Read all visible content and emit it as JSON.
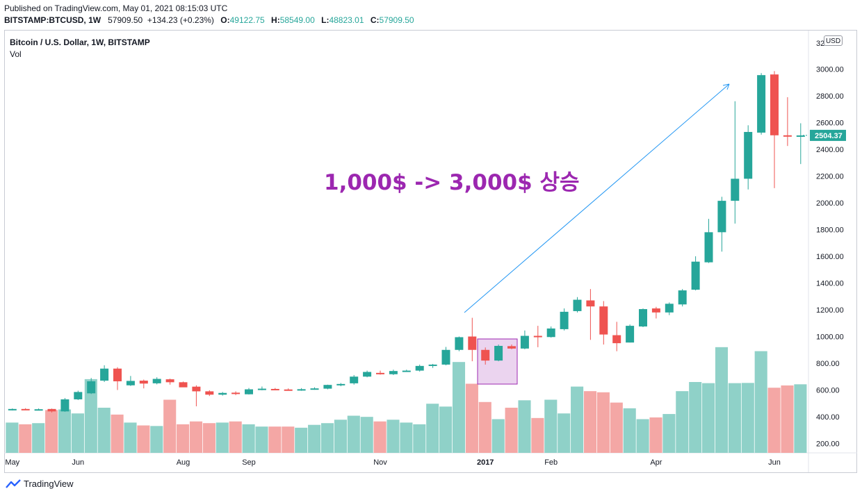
{
  "header": {
    "published": "Published on TradingView.com, May 01, 2021 08:15:03 UTC",
    "symbol": "BITSTAMP:BTCUSD, 1W",
    "price": "57909.50",
    "change": "+134.23 (+0.23%)",
    "o_label": "O:",
    "o_value": "49122.75",
    "h_label": "H:",
    "h_value": "58549.00",
    "l_label": "L:",
    "l_value": "48823.01",
    "c_label": "C:",
    "c_value": "57909.50"
  },
  "legend": {
    "title": "Bitcoin / U.S. Dollar, 1W, BITSTAMP",
    "vol": "Vol"
  },
  "price_axis": {
    "currency": "USD",
    "partial_top": "32"
  },
  "brand": {
    "name": "TradingView"
  },
  "colors": {
    "up": "#26a69a",
    "down": "#ef5350",
    "vol_up": "#8fd1c8",
    "vol_down": "#f4a7a5",
    "annotation": "#9c27b0",
    "arrow": "#2196f3"
  },
  "chart_data": {
    "type": "candlestick",
    "interval": "1W",
    "price_range": [
      100,
      3250
    ],
    "price_ticks": [
      "3000.00",
      "2800.00",
      "2600.00",
      "2400.00",
      "2200.00",
      "2000.00",
      "1800.00",
      "1600.00",
      "1400.00",
      "1200.00",
      "1000.00",
      "800.00",
      "600.00",
      "400.00",
      "200.00"
    ],
    "last_price_label": "2504.37",
    "time_labels": [
      "May",
      "Jun",
      "Aug",
      "Sep",
      "Nov",
      "2017",
      "Feb",
      "Apr",
      "Jun"
    ],
    "annotation_text": "1,000$ -> 3,000$ 상승",
    "candles": [
      {
        "o": 455,
        "h": 462,
        "l": 447,
        "c": 458
      },
      {
        "o": 458,
        "h": 464,
        "l": 451,
        "c": 455
      },
      {
        "o": 455,
        "h": 462,
        "l": 448,
        "c": 456
      },
      {
        "o": 458,
        "h": 461,
        "l": 432,
        "c": 440
      },
      {
        "o": 440,
        "h": 540,
        "l": 437,
        "c": 530
      },
      {
        "o": 530,
        "h": 595,
        "l": 525,
        "c": 585
      },
      {
        "o": 575,
        "h": 690,
        "l": 570,
        "c": 665
      },
      {
        "o": 670,
        "h": 785,
        "l": 660,
        "c": 760
      },
      {
        "o": 760,
        "h": 770,
        "l": 600,
        "c": 665
      },
      {
        "o": 635,
        "h": 705,
        "l": 630,
        "c": 668
      },
      {
        "o": 670,
        "h": 678,
        "l": 612,
        "c": 648
      },
      {
        "o": 650,
        "h": 695,
        "l": 642,
        "c": 683
      },
      {
        "o": 680,
        "h": 685,
        "l": 640,
        "c": 658
      },
      {
        "o": 658,
        "h": 663,
        "l": 625,
        "c": 620
      },
      {
        "o": 625,
        "h": 635,
        "l": 478,
        "c": 590
      },
      {
        "o": 590,
        "h": 598,
        "l": 555,
        "c": 565
      },
      {
        "o": 565,
        "h": 585,
        "l": 558,
        "c": 578
      },
      {
        "o": 580,
        "h": 590,
        "l": 562,
        "c": 570
      },
      {
        "o": 568,
        "h": 615,
        "l": 566,
        "c": 605
      },
      {
        "o": 605,
        "h": 626,
        "l": 598,
        "c": 610
      },
      {
        "o": 608,
        "h": 615,
        "l": 598,
        "c": 601
      },
      {
        "o": 604,
        "h": 612,
        "l": 595,
        "c": 598
      },
      {
        "o": 598,
        "h": 614,
        "l": 594,
        "c": 606
      },
      {
        "o": 606,
        "h": 620,
        "l": 602,
        "c": 612
      },
      {
        "o": 610,
        "h": 640,
        "l": 605,
        "c": 638
      },
      {
        "o": 635,
        "h": 652,
        "l": 628,
        "c": 645
      },
      {
        "o": 650,
        "h": 712,
        "l": 640,
        "c": 700
      },
      {
        "o": 700,
        "h": 745,
        "l": 695,
        "c": 735
      },
      {
        "o": 728,
        "h": 745,
        "l": 715,
        "c": 718
      },
      {
        "o": 718,
        "h": 752,
        "l": 712,
        "c": 742
      },
      {
        "o": 742,
        "h": 752,
        "l": 735,
        "c": 745
      },
      {
        "o": 745,
        "h": 790,
        "l": 738,
        "c": 780
      },
      {
        "o": 780,
        "h": 795,
        "l": 765,
        "c": 790
      },
      {
        "o": 790,
        "h": 922,
        "l": 785,
        "c": 900
      },
      {
        "o": 900,
        "h": 1000,
        "l": 890,
        "c": 995
      },
      {
        "o": 1000,
        "h": 1140,
        "l": 815,
        "c": 900
      },
      {
        "o": 900,
        "h": 918,
        "l": 790,
        "c": 820
      },
      {
        "o": 820,
        "h": 940,
        "l": 815,
        "c": 930
      },
      {
        "o": 928,
        "h": 940,
        "l": 905,
        "c": 910
      },
      {
        "o": 910,
        "h": 1045,
        "l": 905,
        "c": 1005
      },
      {
        "o": 1005,
        "h": 1080,
        "l": 920,
        "c": 996
      },
      {
        "o": 996,
        "h": 1075,
        "l": 992,
        "c": 1060
      },
      {
        "o": 1055,
        "h": 1210,
        "l": 1045,
        "c": 1185
      },
      {
        "o": 1190,
        "h": 1295,
        "l": 1180,
        "c": 1275
      },
      {
        "o": 1270,
        "h": 1355,
        "l": 975,
        "c": 1225
      },
      {
        "o": 1225,
        "h": 1265,
        "l": 940,
        "c": 1015
      },
      {
        "o": 1010,
        "h": 1110,
        "l": 890,
        "c": 950
      },
      {
        "o": 955,
        "h": 1090,
        "l": 955,
        "c": 1080
      },
      {
        "o": 1075,
        "h": 1210,
        "l": 1070,
        "c": 1205
      },
      {
        "o": 1210,
        "h": 1222,
        "l": 1135,
        "c": 1180
      },
      {
        "o": 1180,
        "h": 1255,
        "l": 1160,
        "c": 1245
      },
      {
        "o": 1240,
        "h": 1355,
        "l": 1225,
        "c": 1345
      },
      {
        "o": 1350,
        "h": 1600,
        "l": 1345,
        "c": 1560
      },
      {
        "o": 1555,
        "h": 1880,
        "l": 1550,
        "c": 1780
      },
      {
        "o": 1780,
        "h": 2045,
        "l": 1635,
        "c": 2015
      },
      {
        "o": 2015,
        "h": 2760,
        "l": 1845,
        "c": 2180
      },
      {
        "o": 2180,
        "h": 2580,
        "l": 2100,
        "c": 2530
      },
      {
        "o": 2525,
        "h": 2970,
        "l": 2510,
        "c": 2955
      },
      {
        "o": 2960,
        "h": 2985,
        "l": 2110,
        "c": 2505
      },
      {
        "o": 2505,
        "h": 2790,
        "l": 2425,
        "c": 2495
      },
      {
        "o": 2495,
        "h": 2595,
        "l": 2290,
        "c": 2504
      }
    ],
    "volumes": [
      265,
      250,
      260,
      375,
      380,
      345,
      645,
      395,
      335,
      265,
      240,
      235,
      465,
      250,
      275,
      260,
      265,
      275,
      250,
      230,
      230,
      230,
      220,
      245,
      260,
      290,
      325,
      315,
      275,
      290,
      265,
      250,
      430,
      405,
      795,
      605,
      445,
      295,
      395,
      460,
      305,
      465,
      345,
      580,
      540,
      530,
      440,
      390,
      295,
      310,
      340,
      540,
      620,
      610,
      925,
      610,
      612,
      890,
      570,
      590,
      600
    ]
  }
}
